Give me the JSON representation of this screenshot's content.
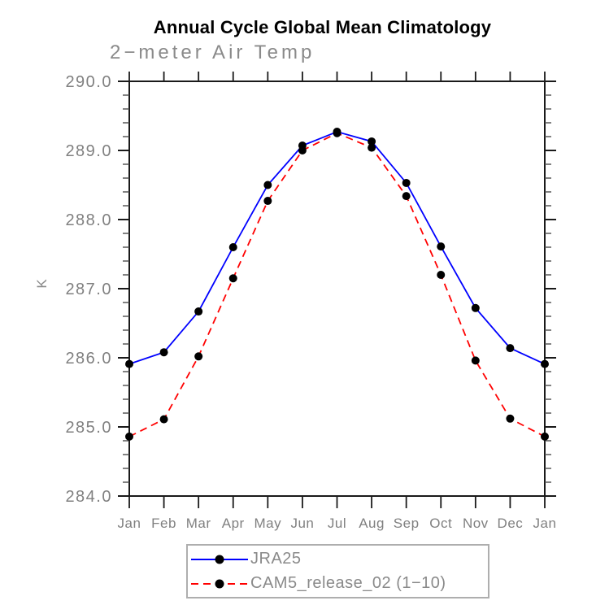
{
  "chart_data": {
    "type": "line",
    "title": "Annual Cycle Global Mean Climatology",
    "subtitle": "2−meter Air Temp",
    "ylabel": "K",
    "xlabel": "",
    "categories": [
      "Jan",
      "Feb",
      "Mar",
      "Apr",
      "May",
      "Jun",
      "Jul",
      "Aug",
      "Sep",
      "Oct",
      "Nov",
      "Dec",
      "Jan"
    ],
    "ylim": [
      284.0,
      290.0
    ],
    "y_major_step": 1.0,
    "y_minor_step": 0.2,
    "y_tick_labels": [
      "284.0",
      "285.0",
      "286.0",
      "287.0",
      "288.0",
      "289.0",
      "290.0"
    ],
    "grid": false,
    "legend_position": "bottom-box",
    "series": [
      {
        "name": "JRA25",
        "color": "#0000ff",
        "style": "solid",
        "marker": "black-dot",
        "values": [
          285.91,
          286.08,
          286.67,
          287.6,
          288.5,
          289.07,
          289.27,
          289.13,
          288.53,
          287.61,
          286.72,
          286.14,
          285.91
        ]
      },
      {
        "name": "CAM5_release_02 (1−10)",
        "color": "#ff0000",
        "style": "dashed",
        "marker": "black-dot",
        "values": [
          284.86,
          285.11,
          286.02,
          287.15,
          288.27,
          289.0,
          289.25,
          289.04,
          288.34,
          287.2,
          285.96,
          285.12,
          284.86
        ]
      }
    ],
    "colors": {
      "axis": "#1a1a1a",
      "minor_tick": "#4d4d4d",
      "tick_label": "#808080",
      "subtitle": "#8a8a8a",
      "title": "#000000",
      "marker": "#000000",
      "legend_border": "#aeaeae"
    }
  }
}
